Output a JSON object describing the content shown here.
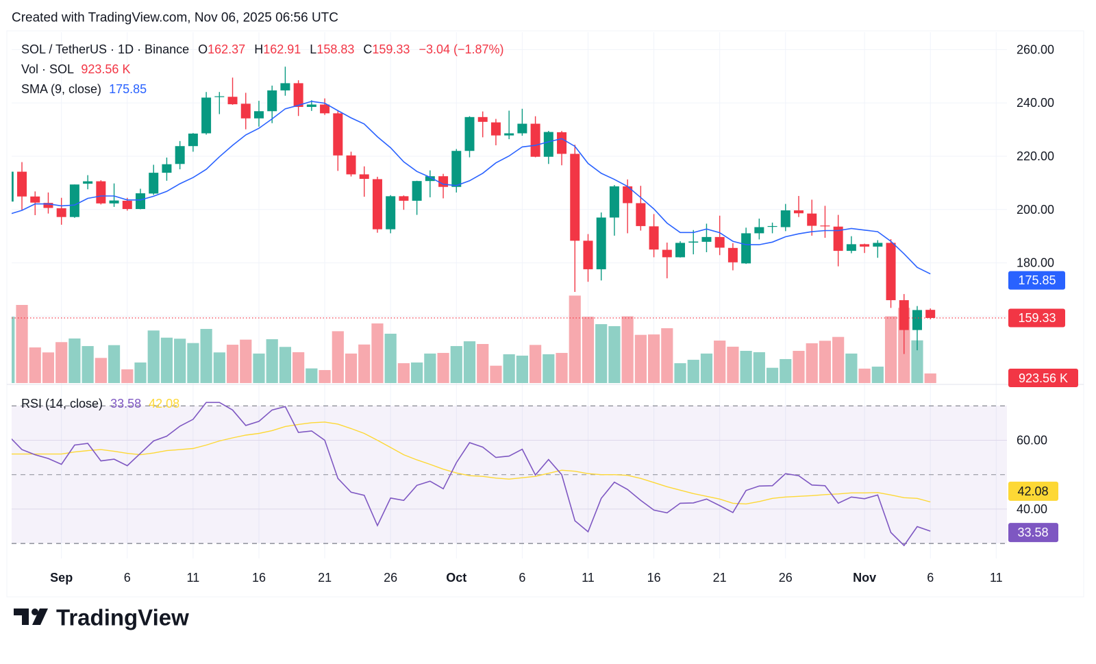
{
  "header": {
    "created": "Created with TradingView.com, Nov 06, 2025 06:56 UTC"
  },
  "legend": {
    "symbol": "SOL / TetherUS · 1D · Binance",
    "o_label": "O",
    "o": "162.37",
    "h_label": "H",
    "h": "162.91",
    "l_label": "L",
    "l": "158.83",
    "c_label": "C",
    "c": "159.33",
    "change": "−3.04 (−1.87%)",
    "vol_label": "Vol · SOL",
    "vol": "923.56 K",
    "sma_label": "SMA (9, close)",
    "sma": "175.85",
    "rsi_label": "RSI (14, close)",
    "rsi": "33.58",
    "rsi_ma": "42.08"
  },
  "price_axis": {
    "ticks": [
      {
        "value": 260,
        "label": "260.00"
      },
      {
        "value": 240,
        "label": "240.00"
      },
      {
        "value": 220,
        "label": "220.00"
      },
      {
        "value": 200,
        "label": "200.00"
      },
      {
        "value": 180,
        "label": "180.00"
      }
    ]
  },
  "rsi_axis": {
    "ticks": [
      {
        "value": 60,
        "label": "60.00"
      },
      {
        "value": 40,
        "label": "40.00"
      }
    ],
    "bands": [
      70,
      50,
      30
    ]
  },
  "badges": {
    "sma": {
      "value": 175.85,
      "label": "175.85",
      "color": "#2962FF"
    },
    "last_price": {
      "value": 159.33,
      "label": "159.33",
      "color": "#F23645"
    },
    "volume": {
      "label": "923.56 K",
      "color": "#F23645"
    },
    "rsi_ma": {
      "value": 42.08,
      "label": "42.08",
      "color": "#FDD835"
    },
    "rsi": {
      "value": 33.58,
      "label": "33.58",
      "color": "#7E57C2"
    }
  },
  "time_axis": {
    "ticks": [
      {
        "date": "2025-09-01",
        "label": "Sep",
        "month": true
      },
      {
        "date": "2025-09-06",
        "label": "6"
      },
      {
        "date": "2025-09-11",
        "label": "11"
      },
      {
        "date": "2025-09-16",
        "label": "16"
      },
      {
        "date": "2025-09-21",
        "label": "21"
      },
      {
        "date": "2025-09-26",
        "label": "26"
      },
      {
        "date": "2025-10-01",
        "label": "Oct",
        "month": true
      },
      {
        "date": "2025-10-06",
        "label": "6"
      },
      {
        "date": "2025-10-11",
        "label": "11"
      },
      {
        "date": "2025-10-16",
        "label": "16"
      },
      {
        "date": "2025-10-21",
        "label": "21"
      },
      {
        "date": "2025-10-26",
        "label": "26"
      },
      {
        "date": "2025-11-01",
        "label": "Nov",
        "month": true
      },
      {
        "date": "2025-11-06",
        "label": "6"
      },
      {
        "date": "2025-11-11",
        "label": "11"
      }
    ]
  },
  "colors": {
    "up": "#089981",
    "down": "#F23645",
    "up_volume": "#8fd0c5",
    "down_volume": "#f7a9ae",
    "sma": "#2962FF",
    "rsi": "#7E57C2",
    "rsi_ma": "#FDD835",
    "text": "#131722",
    "grid": "#f0f3fa"
  },
  "footer": {
    "brand": "TradingView"
  },
  "chart_data": {
    "type": "candlestick",
    "title": "SOL / TetherUS · 1D · Binance",
    "price_range": [
      140,
      262
    ],
    "grid": true,
    "dates": [
      "2025-08-28",
      "2025-08-29",
      "2025-08-30",
      "2025-08-31",
      "2025-09-01",
      "2025-09-02",
      "2025-09-03",
      "2025-09-04",
      "2025-09-05",
      "2025-09-06",
      "2025-09-07",
      "2025-09-08",
      "2025-09-09",
      "2025-09-10",
      "2025-09-11",
      "2025-09-12",
      "2025-09-13",
      "2025-09-14",
      "2025-09-15",
      "2025-09-16",
      "2025-09-17",
      "2025-09-18",
      "2025-09-19",
      "2025-09-20",
      "2025-09-21",
      "2025-09-22",
      "2025-09-23",
      "2025-09-24",
      "2025-09-25",
      "2025-09-26",
      "2025-09-27",
      "2025-09-28",
      "2025-09-29",
      "2025-09-30",
      "2025-10-01",
      "2025-10-02",
      "2025-10-03",
      "2025-10-04",
      "2025-10-05",
      "2025-10-06",
      "2025-10-07",
      "2025-10-08",
      "2025-10-09",
      "2025-10-10",
      "2025-10-11",
      "2025-10-12",
      "2025-10-13",
      "2025-10-14",
      "2025-10-15",
      "2025-10-16",
      "2025-10-17",
      "2025-10-18",
      "2025-10-19",
      "2025-10-20",
      "2025-10-21",
      "2025-10-22",
      "2025-10-23",
      "2025-10-24",
      "2025-10-25",
      "2025-10-26",
      "2025-10-27",
      "2025-10-28",
      "2025-10-29",
      "2025-10-30",
      "2025-10-31",
      "2025-11-01",
      "2025-11-02",
      "2025-11-03",
      "2025-11-04",
      "2025-11-05",
      "2025-11-06"
    ],
    "ohlc": [
      [
        203.0,
        215.5,
        201.5,
        214.2
      ],
      [
        214.2,
        217.8,
        199.9,
        204.9
      ],
      [
        204.9,
        206.8,
        197.9,
        202.6
      ],
      [
        202.5,
        206.4,
        198.5,
        200.6
      ],
      [
        200.5,
        204.4,
        194.3,
        197.2
      ],
      [
        197.2,
        209.4,
        196.9,
        209.4
      ],
      [
        209.7,
        212.9,
        207.6,
        210.6
      ],
      [
        210.6,
        211.0,
        201.9,
        202.3
      ],
      [
        202.3,
        209.8,
        201.0,
        203.4
      ],
      [
        203.3,
        204.4,
        199.6,
        200.2
      ],
      [
        200.2,
        207.8,
        200.1,
        206.1
      ],
      [
        206.0,
        216.8,
        205.5,
        213.8
      ],
      [
        213.8,
        219.5,
        210.8,
        217.0
      ],
      [
        217.1,
        225.7,
        215.1,
        223.8
      ],
      [
        223.8,
        228.7,
        221.7,
        228.5
      ],
      [
        228.6,
        244.1,
        228.1,
        242.0
      ],
      [
        242.3,
        244.1,
        235.8,
        242.5
      ],
      [
        242.3,
        249.5,
        239.3,
        239.5
      ],
      [
        239.7,
        243.8,
        230.1,
        234.2
      ],
      [
        234.2,
        240.8,
        231.1,
        236.9
      ],
      [
        236.9,
        246.5,
        232.4,
        244.7
      ],
      [
        244.7,
        253.6,
        242.7,
        247.4
      ],
      [
        247.4,
        248.5,
        235.1,
        238.5
      ],
      [
        238.5,
        241.0,
        237.0,
        239.4
      ],
      [
        239.4,
        241.7,
        235.5,
        236.1
      ],
      [
        236.1,
        237.0,
        214.5,
        220.3
      ],
      [
        220.3,
        221.7,
        212.4,
        213.2
      ],
      [
        213.2,
        216.2,
        204.8,
        211.5
      ],
      [
        211.4,
        212.3,
        191.3,
        192.6
      ],
      [
        192.6,
        205.4,
        191.1,
        205.0
      ],
      [
        205.0,
        205.3,
        199.9,
        203.3
      ],
      [
        203.3,
        210.8,
        198.0,
        210.7
      ],
      [
        210.7,
        214.7,
        204.6,
        212.5
      ],
      [
        212.5,
        213.4,
        204.2,
        208.5
      ],
      [
        208.5,
        222.7,
        206.4,
        222.0
      ],
      [
        222.0,
        235.0,
        219.6,
        234.7
      ],
      [
        234.7,
        236.8,
        227.1,
        232.9
      ],
      [
        232.7,
        234.0,
        224.1,
        227.8
      ],
      [
        227.8,
        237.1,
        226.4,
        228.6
      ],
      [
        228.6,
        237.8,
        227.7,
        232.2
      ],
      [
        232.2,
        235.0,
        219.6,
        219.8
      ],
      [
        219.8,
        229.5,
        217.1,
        229.1
      ],
      [
        229.0,
        229.5,
        216.6,
        220.9
      ],
      [
        220.9,
        224.3,
        169.1,
        188.3
      ],
      [
        188.3,
        190.8,
        172.9,
        177.6
      ],
      [
        177.6,
        198.9,
        173.4,
        197.0
      ],
      [
        197.0,
        209.2,
        190.2,
        208.7
      ],
      [
        208.7,
        211.3,
        191.1,
        202.4
      ],
      [
        202.4,
        208.9,
        192.1,
        193.8
      ],
      [
        193.7,
        198.3,
        182.1,
        185.0
      ],
      [
        184.9,
        187.6,
        174.2,
        182.1
      ],
      [
        182.1,
        188.1,
        182.0,
        187.5
      ],
      [
        187.6,
        192.3,
        183.2,
        188.0
      ],
      [
        187.9,
        194.7,
        184.0,
        189.7
      ],
      [
        189.7,
        197.7,
        182.9,
        185.7
      ],
      [
        185.6,
        187.4,
        177.2,
        180.2
      ],
      [
        179.8,
        193.2,
        179.6,
        191.1
      ],
      [
        191.1,
        196.6,
        188.8,
        193.4
      ],
      [
        193.5,
        195.1,
        191.1,
        193.8
      ],
      [
        193.4,
        202.1,
        191.9,
        199.7
      ],
      [
        199.7,
        205.1,
        197.2,
        198.6
      ],
      [
        198.5,
        203.7,
        190.2,
        193.9
      ],
      [
        194.0,
        201.4,
        189.4,
        193.8
      ],
      [
        193.6,
        198.0,
        178.7,
        184.5
      ],
      [
        184.5,
        190.0,
        183.6,
        187.0
      ],
      [
        187.0,
        187.2,
        183.7,
        186.1
      ],
      [
        186.1,
        188.5,
        181.9,
        187.5
      ],
      [
        187.5,
        188.9,
        163.1,
        166.0
      ],
      [
        166.0,
        168.3,
        145.8,
        154.8
      ],
      [
        154.8,
        163.8,
        147.2,
        162.3
      ],
      [
        162.37,
        162.91,
        158.83,
        159.33
      ]
    ],
    "volume_k": [
      6380,
      7520,
      3430,
      2950,
      3940,
      4290,
      3560,
      2420,
      3650,
      1320,
      1980,
      5060,
      4370,
      4270,
      3850,
      5210,
      2950,
      3690,
      4180,
      2840,
      4220,
      3480,
      2970,
      1410,
      1250,
      4990,
      2840,
      3710,
      5740,
      4750,
      1910,
      1980,
      2840,
      2900,
      3560,
      4020,
      3760,
      1670,
      2770,
      2640,
      3670,
      2770,
      2900,
      8420,
      6380,
      5670,
      5480,
      6420,
      4640,
      4680,
      5280,
      1910,
      2240,
      2840,
      4090,
      3500,
      3100,
      2970,
      1470,
      2310,
      3100,
      3830,
      4070,
      4440,
      2840,
      1390,
      1580,
      6420,
      7240,
      4110,
      923.56
    ],
    "sma9": [
      198.2,
      199.7,
      202.1,
      202.1,
      201.4,
      201.7,
      204.2,
      205.1,
      205.1,
      203.6,
      203.6,
      205.0,
      206.8,
      209.7,
      212.0,
      215.1,
      219.8,
      224.1,
      228.0,
      230.5,
      234.0,
      237.8,
      239.1,
      240.6,
      239.9,
      237.1,
      234.4,
      232.1,
      227.3,
      223.2,
      217.9,
      214.3,
      212.1,
      209.5,
      209.0,
      210.8,
      213.6,
      217.5,
      220.1,
      223.5,
      224.1,
      225.4,
      226.6,
      223.7,
      217.3,
      213.6,
      211.3,
      208.7,
      204.5,
      200.2,
      194.9,
      191.4,
      191.4,
      192.7,
      191.3,
      188.1,
      186.8,
      186.8,
      187.8,
      189.8,
      190.9,
      191.7,
      192.1,
      192.1,
      192.9,
      192.3,
      191.7,
      188.1,
      183.4,
      178.3,
      175.85
    ],
    "rsi_range": [
      30,
      70
    ],
    "rsi14": [
      61.2,
      57.3,
      55.8,
      54.7,
      53.0,
      58.6,
      59.1,
      54.0,
      54.5,
      52.6,
      56.2,
      59.8,
      61.2,
      64.1,
      66.1,
      71.0,
      71.0,
      68.8,
      64.3,
      65.5,
      68.8,
      69.8,
      62.3,
      62.7,
      60.0,
      48.9,
      44.9,
      44.0,
      35.2,
      43.2,
      42.5,
      46.9,
      48.1,
      45.9,
      53.5,
      59.3,
      58.0,
      55.0,
      55.4,
      57.4,
      49.9,
      54.4,
      50.0,
      36.6,
      33.4,
      43.1,
      47.8,
      45.7,
      42.5,
      39.7,
      38.9,
      41.7,
      41.8,
      42.9,
      41.0,
      39.0,
      45.4,
      46.7,
      46.8,
      50.3,
      49.7,
      47.0,
      46.8,
      41.7,
      43.5,
      43.0,
      44.1,
      33.2,
      29.4,
      34.9,
      33.58
    ],
    "rsi_ma": [
      56.0,
      56.0,
      56.0,
      56.0,
      56.0,
      56.6,
      57.0,
      57.3,
      56.8,
      56.2,
      55.8,
      56.3,
      57.0,
      57.3,
      57.6,
      58.6,
      59.8,
      60.7,
      61.5,
      62.0,
      62.8,
      64.0,
      64.6,
      65.1,
      65.3,
      64.7,
      63.4,
      62.0,
      60.0,
      57.9,
      55.8,
      54.3,
      53.0,
      51.6,
      50.5,
      49.7,
      49.5,
      49.0,
      48.7,
      49.1,
      49.5,
      50.4,
      51.3,
      51.0,
      50.3,
      50.0,
      50.0,
      49.8,
      48.9,
      47.7,
      46.5,
      45.5,
      44.5,
      43.7,
      42.9,
      41.7,
      41.5,
      42.2,
      43.1,
      43.5,
      43.7,
      43.9,
      44.2,
      44.4,
      44.7,
      44.7,
      44.8,
      44.1,
      43.3,
      43.1,
      42.08
    ]
  }
}
